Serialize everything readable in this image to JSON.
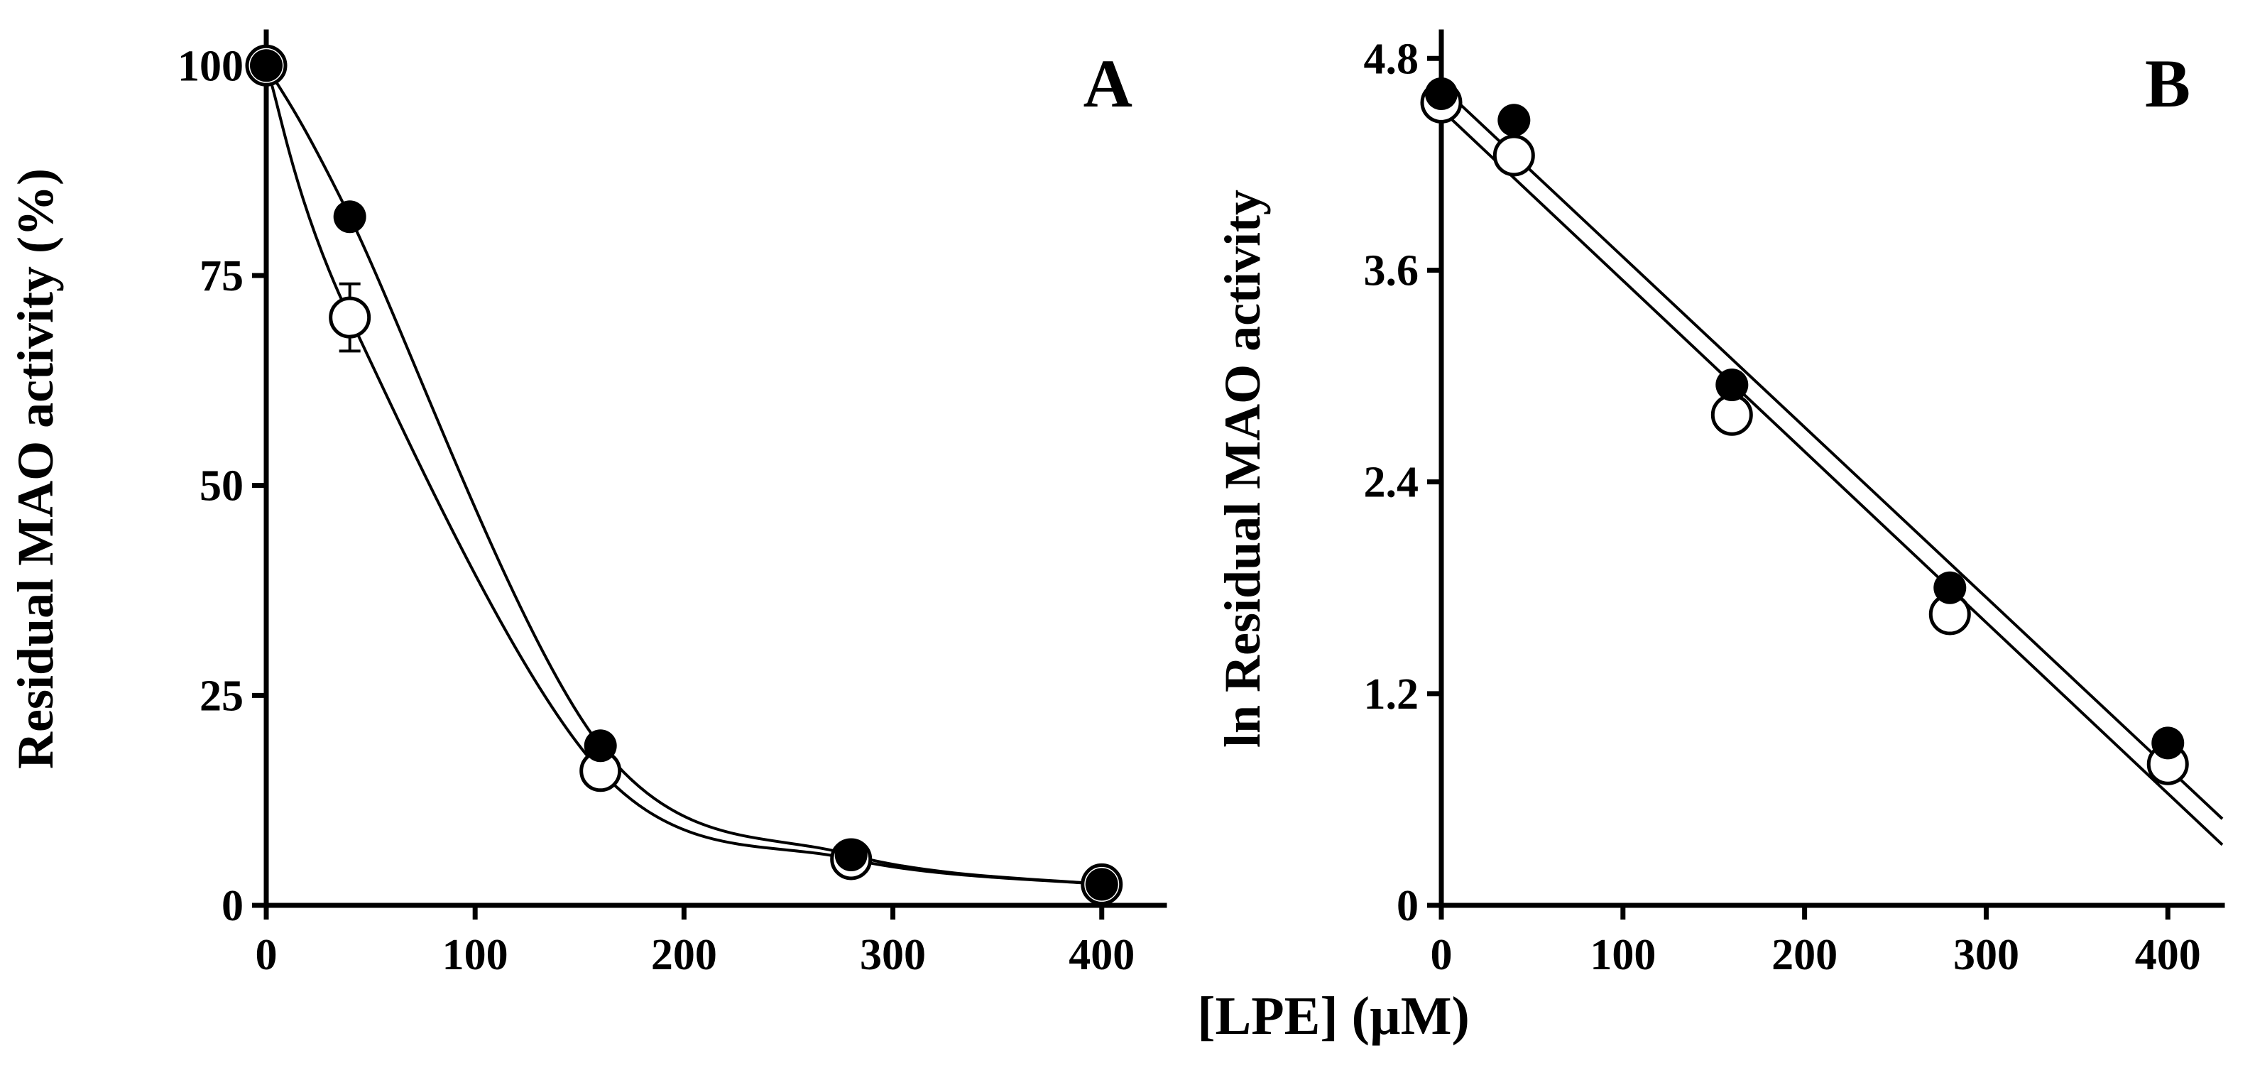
{
  "figure": {
    "xlabel": "[LPE] (µM)"
  },
  "chart_data": [
    {
      "type": "line",
      "panel_label": "A",
      "title": "",
      "xlabel": "[LPE] (µM)",
      "ylabel": "Residual MAO activity (%)",
      "xlim": [
        0,
        430
      ],
      "ylim": [
        0,
        104
      ],
      "xticks": [
        0,
        100,
        200,
        300,
        400
      ],
      "xtick_labels": [
        "0",
        "100",
        "200",
        "300",
        "400"
      ],
      "yticks": [
        0,
        25,
        50,
        75,
        100
      ],
      "ytick_labels": [
        "0",
        "25",
        "50",
        "75",
        "100"
      ],
      "grid": false,
      "legend": "none",
      "x_values": [
        0,
        40,
        160,
        280,
        400
      ],
      "series": [
        {
          "name": "open-circles",
          "marker": "open",
          "values": [
            100,
            70,
            16,
            5.5,
            2.5
          ],
          "yerr": [
            0,
            4,
            0,
            0,
            0
          ]
        },
        {
          "name": "filled-circles",
          "marker": "filled",
          "values": [
            100,
            82,
            19,
            6,
            2.5
          ]
        }
      ]
    },
    {
      "type": "scatter",
      "panel_label": "B",
      "title": "",
      "xlabel": "[LPE] (µM)",
      "ylabel": "ln Residual MAO activity",
      "xlim": [
        0,
        430
      ],
      "ylim": [
        0,
        4.95
      ],
      "xticks": [
        0,
        100,
        200,
        300,
        400
      ],
      "xtick_labels": [
        "0",
        "100",
        "200",
        "300",
        "400"
      ],
      "yticks": [
        0,
        1.2,
        2.4,
        3.6,
        4.8
      ],
      "ytick_labels": [
        "0",
        "1.2",
        "2.4",
        "3.6",
        "4.8"
      ],
      "grid": false,
      "legend": "none",
      "x_values": [
        0,
        40,
        160,
        280,
        400
      ],
      "series": [
        {
          "name": "open-circles",
          "marker": "open",
          "values": [
            4.55,
            4.25,
            2.78,
            1.65,
            0.8
          ],
          "fit": {
            "slope": -0.00969,
            "intercept": 4.51
          }
        },
        {
          "name": "filled-circles",
          "marker": "filled",
          "values": [
            4.6,
            4.45,
            2.95,
            1.8,
            0.92
          ],
          "fit": {
            "slope": -0.00965,
            "intercept": 4.64
          }
        }
      ]
    }
  ]
}
